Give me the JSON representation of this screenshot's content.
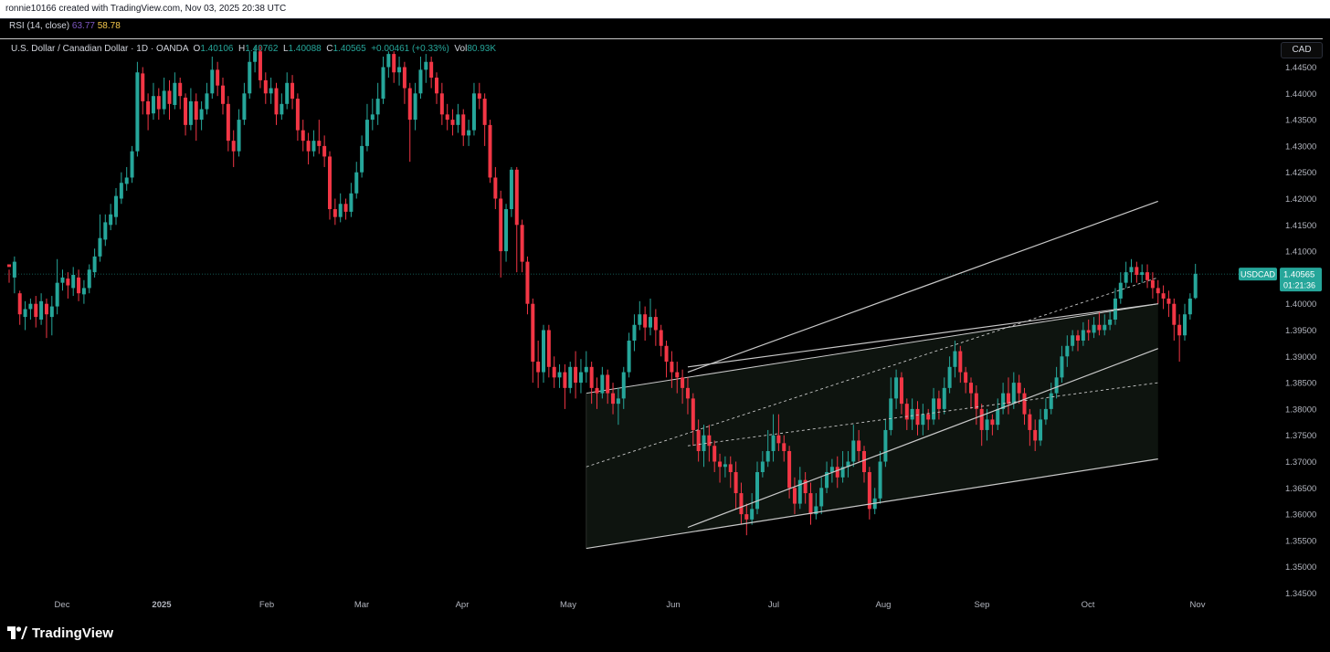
{
  "header": {
    "text": "ronnie10166 created with TradingView.com, Nov 03, 2025 20:38 UTC"
  },
  "rsi": {
    "label": "RSI (14, close)",
    "value1": "63.77",
    "value2": "58.78"
  },
  "legend": {
    "title": "U.S. Dollar / Canadian Dollar · 1D · OANDA",
    "o_label": "O",
    "o_value": "1.40106",
    "h_label": "H",
    "h_value": "1.40762",
    "l_label": "L",
    "l_value": "1.40088",
    "c_label": "C",
    "c_value": "1.40565",
    "change": "+0.00461 (+0.33%)",
    "vol_label": "Vol",
    "vol_value": "80.93K"
  },
  "currency": "CAD",
  "price_tag": {
    "symbol": "USDCAD",
    "price": "1.40565",
    "countdown": "01:21:36"
  },
  "colors": {
    "up": "#26a69a",
    "down": "#f23645",
    "background": "#000000",
    "lines": "#c8c8c8",
    "channel_fill": "#0e140f"
  },
  "logo": {
    "text": "TradingView",
    "icon": "tradingview-logo-icon"
  },
  "chart_data": {
    "type": "candlestick",
    "symbol": "USDCAD",
    "interval": "1D",
    "y_axis": {
      "min": 1.345,
      "max": 1.4475,
      "ticks": [
        "1.44500",
        "1.44000",
        "1.43500",
        "1.43000",
        "1.42500",
        "1.42000",
        "1.41500",
        "1.41000",
        "1.40500",
        "1.40000",
        "1.39500",
        "1.39000",
        "1.38500",
        "1.38000",
        "1.37500",
        "1.37000",
        "1.36500",
        "1.36000",
        "1.35500",
        "1.35000",
        "1.34500"
      ]
    },
    "x_axis": {
      "ticks": [
        "Dec",
        "2025",
        "Feb",
        "Mar",
        "Apr",
        "May",
        "Jun",
        "Jul",
        "Aug",
        "Sep",
        "Oct",
        "Nov"
      ]
    },
    "last_price": 1.40565,
    "candles": [
      [
        1.4075,
        1.407,
        1.4065,
        1.404
      ],
      [
        1.405,
        1.408,
        1.409,
        1.402
      ],
      [
        1.402,
        1.398,
        1.4025,
        1.396
      ],
      [
        1.3975,
        1.399,
        1.4005,
        1.395
      ],
      [
        1.399,
        1.4,
        1.401,
        1.397
      ],
      [
        1.4,
        1.3975,
        1.4015,
        1.3955
      ],
      [
        1.397,
        1.4005,
        1.402,
        1.396
      ],
      [
        1.4,
        1.398,
        1.401,
        1.3935
      ],
      [
        1.3975,
        1.3995,
        1.4015,
        1.394
      ],
      [
        1.3995,
        1.404,
        1.4085,
        1.398
      ],
      [
        1.404,
        1.405,
        1.4065,
        1.4025
      ],
      [
        1.4048,
        1.4035,
        1.406,
        1.401
      ],
      [
        1.403,
        1.4055,
        1.407,
        1.4015
      ],
      [
        1.405,
        1.402,
        1.4065,
        1.4005
      ],
      [
        1.4018,
        1.403,
        1.4045,
        1.4
      ],
      [
        1.403,
        1.4065,
        1.4075,
        1.402
      ],
      [
        1.406,
        1.409,
        1.4105,
        1.405
      ],
      [
        1.409,
        1.4125,
        1.417,
        1.408
      ],
      [
        1.4122,
        1.4155,
        1.417,
        1.411
      ],
      [
        1.415,
        1.417,
        1.419,
        1.414
      ],
      [
        1.4165,
        1.4205,
        1.422,
        1.415
      ],
      [
        1.42,
        1.423,
        1.425,
        1.419
      ],
      [
        1.4228,
        1.424,
        1.426,
        1.4215
      ],
      [
        1.424,
        1.429,
        1.43,
        1.423
      ],
      [
        1.429,
        1.444,
        1.446,
        1.428
      ],
      [
        1.4438,
        1.4385,
        1.445,
        1.436
      ],
      [
        1.4385,
        1.436,
        1.44,
        1.433
      ],
      [
        1.4362,
        1.4395,
        1.442,
        1.435
      ],
      [
        1.4395,
        1.437,
        1.441,
        1.435
      ],
      [
        1.437,
        1.4405,
        1.443,
        1.436
      ],
      [
        1.4405,
        1.438,
        1.4425,
        1.435
      ],
      [
        1.4378,
        1.442,
        1.444,
        1.437
      ],
      [
        1.442,
        1.4395,
        1.443,
        1.437
      ],
      [
        1.4392,
        1.434,
        1.44,
        1.432
      ],
      [
        1.434,
        1.4385,
        1.441,
        1.433
      ],
      [
        1.4385,
        1.435,
        1.44,
        1.431
      ],
      [
        1.435,
        1.437,
        1.4385,
        1.433
      ],
      [
        1.437,
        1.44,
        1.442,
        1.436
      ],
      [
        1.44,
        1.4445,
        1.447,
        1.439
      ],
      [
        1.4445,
        1.4415,
        1.446,
        1.4395
      ],
      [
        1.4415,
        1.438,
        1.443,
        1.436
      ],
      [
        1.438,
        1.431,
        1.4395,
        1.429
      ],
      [
        1.431,
        1.429,
        1.433,
        1.426
      ],
      [
        1.429,
        1.435,
        1.437,
        1.428
      ],
      [
        1.435,
        1.44,
        1.442,
        1.434
      ],
      [
        1.44,
        1.446,
        1.448,
        1.439
      ],
      [
        1.446,
        1.448,
        1.449,
        1.444
      ],
      [
        1.448,
        1.4425,
        1.449,
        1.441
      ],
      [
        1.4425,
        1.44,
        1.444,
        1.438
      ],
      [
        1.44,
        1.441,
        1.443,
        1.438
      ],
      [
        1.441,
        1.436,
        1.442,
        1.434
      ],
      [
        1.436,
        1.438,
        1.44,
        1.435
      ],
      [
        1.438,
        1.442,
        1.444,
        1.437
      ],
      [
        1.442,
        1.439,
        1.4435,
        1.437
      ],
      [
        1.439,
        1.433,
        1.44,
        1.431
      ],
      [
        1.433,
        1.431,
        1.435,
        1.429
      ],
      [
        1.431,
        1.429,
        1.4325,
        1.4265
      ],
      [
        1.429,
        1.431,
        1.433,
        1.428
      ],
      [
        1.431,
        1.43,
        1.435,
        1.4285
      ],
      [
        1.43,
        1.428,
        1.432,
        1.426
      ],
      [
        1.428,
        1.418,
        1.429,
        1.416
      ],
      [
        1.418,
        1.4165,
        1.42,
        1.415
      ],
      [
        1.4165,
        1.419,
        1.421,
        1.4155
      ],
      [
        1.419,
        1.4175,
        1.42,
        1.416
      ],
      [
        1.4175,
        1.421,
        1.423,
        1.4165
      ],
      [
        1.421,
        1.425,
        1.427,
        1.42
      ],
      [
        1.425,
        1.43,
        1.432,
        1.424
      ],
      [
        1.43,
        1.435,
        1.438,
        1.429
      ],
      [
        1.435,
        1.436,
        1.439,
        1.433
      ],
      [
        1.436,
        1.439,
        1.442,
        1.434
      ],
      [
        1.439,
        1.445,
        1.447,
        1.438
      ],
      [
        1.445,
        1.4475,
        1.448,
        1.443
      ],
      [
        1.4475,
        1.444,
        1.448,
        1.442
      ],
      [
        1.444,
        1.445,
        1.447,
        1.4415
      ],
      [
        1.445,
        1.441,
        1.446,
        1.438
      ],
      [
        1.441,
        1.435,
        1.442,
        1.427
      ],
      [
        1.435,
        1.44,
        1.442,
        1.433
      ],
      [
        1.44,
        1.4445,
        1.447,
        1.439
      ],
      [
        1.4445,
        1.446,
        1.4475,
        1.442
      ],
      [
        1.446,
        1.443,
        1.447,
        1.441
      ],
      [
        1.443,
        1.44,
        1.444,
        1.438
      ],
      [
        1.44,
        1.436,
        1.442,
        1.434
      ],
      [
        1.436,
        1.435,
        1.438,
        1.433
      ],
      [
        1.435,
        1.434,
        1.437,
        1.432
      ],
      [
        1.434,
        1.436,
        1.438,
        1.4325
      ],
      [
        1.436,
        1.432,
        1.437,
        1.43
      ],
      [
        1.432,
        1.433,
        1.435,
        1.43
      ],
      [
        1.433,
        1.44,
        1.442,
        1.432
      ],
      [
        1.44,
        1.439,
        1.442,
        1.437
      ],
      [
        1.439,
        1.434,
        1.44,
        1.43
      ],
      [
        1.434,
        1.424,
        1.435,
        1.423
      ],
      [
        1.424,
        1.42,
        1.426,
        1.418
      ],
      [
        1.42,
        1.41,
        1.4215,
        1.405
      ],
      [
        1.41,
        1.418,
        1.419,
        1.408
      ],
      [
        1.418,
        1.4255,
        1.426,
        1.4165
      ],
      [
        1.4255,
        1.415,
        1.426,
        1.406
      ],
      [
        1.415,
        1.408,
        1.416,
        1.406
      ],
      [
        1.408,
        1.4,
        1.409,
        1.398
      ],
      [
        1.4,
        1.389,
        1.401,
        1.385
      ],
      [
        1.389,
        1.387,
        1.393,
        1.384
      ],
      [
        1.387,
        1.395,
        1.396,
        1.385
      ],
      [
        1.395,
        1.388,
        1.396,
        1.386
      ],
      [
        1.388,
        1.386,
        1.39,
        1.384
      ],
      [
        1.386,
        1.387,
        1.3885,
        1.384
      ],
      [
        1.387,
        1.384,
        1.3885,
        1.38
      ],
      [
        1.384,
        1.388,
        1.389,
        1.383
      ],
      [
        1.388,
        1.385,
        1.391,
        1.382
      ],
      [
        1.385,
        1.387,
        1.3895,
        1.383
      ],
      [
        1.387,
        1.388,
        1.391,
        1.385
      ],
      [
        1.388,
        1.384,
        1.389,
        1.381
      ],
      [
        1.384,
        1.383,
        1.386,
        1.38
      ],
      [
        1.383,
        1.3865,
        1.388,
        1.382
      ],
      [
        1.3865,
        1.383,
        1.3875,
        1.381
      ],
      [
        1.383,
        1.381,
        1.385,
        1.379
      ],
      [
        1.381,
        1.382,
        1.384,
        1.377
      ],
      [
        1.382,
        1.387,
        1.388,
        1.38
      ],
      [
        1.387,
        1.393,
        1.3945,
        1.386
      ],
      [
        1.393,
        1.396,
        1.398,
        1.391
      ],
      [
        1.396,
        1.398,
        1.4005,
        1.395
      ],
      [
        1.398,
        1.3955,
        1.3995,
        1.393
      ],
      [
        1.3955,
        1.3975,
        1.401,
        1.394
      ],
      [
        1.3975,
        1.395,
        1.399,
        1.392
      ],
      [
        1.395,
        1.392,
        1.396,
        1.39
      ],
      [
        1.392,
        1.389,
        1.393,
        1.386
      ],
      [
        1.389,
        1.387,
        1.391,
        1.384
      ],
      [
        1.387,
        1.386,
        1.389,
        1.383
      ],
      [
        1.386,
        1.384,
        1.3875,
        1.381
      ],
      [
        1.384,
        1.382,
        1.386,
        1.379
      ],
      [
        1.382,
        1.376,
        1.383,
        1.373
      ],
      [
        1.376,
        1.372,
        1.378,
        1.37
      ],
      [
        1.372,
        1.375,
        1.377,
        1.369
      ],
      [
        1.375,
        1.373,
        1.377,
        1.37
      ],
      [
        1.373,
        1.37,
        1.374,
        1.368
      ],
      [
        1.37,
        1.369,
        1.3715,
        1.366
      ],
      [
        1.369,
        1.3695,
        1.371,
        1.367
      ],
      [
        1.3695,
        1.368,
        1.371,
        1.365
      ],
      [
        1.368,
        1.364,
        1.37,
        1.361
      ],
      [
        1.364,
        1.36,
        1.366,
        1.358
      ],
      [
        1.36,
        1.359,
        1.362,
        1.356
      ],
      [
        1.359,
        1.361,
        1.364,
        1.358
      ],
      [
        1.361,
        1.368,
        1.37,
        1.36
      ],
      [
        1.368,
        1.37,
        1.372,
        1.367
      ],
      [
        1.37,
        1.372,
        1.376,
        1.369
      ],
      [
        1.372,
        1.375,
        1.379,
        1.37
      ],
      [
        1.375,
        1.3735,
        1.379,
        1.372
      ],
      [
        1.3735,
        1.372,
        1.375,
        1.37
      ],
      [
        1.372,
        1.365,
        1.373,
        1.363
      ],
      [
        1.365,
        1.362,
        1.367,
        1.36
      ],
      [
        1.362,
        1.3665,
        1.369,
        1.361
      ],
      [
        1.3665,
        1.364,
        1.368,
        1.362
      ],
      [
        1.364,
        1.36,
        1.366,
        1.358
      ],
      [
        1.36,
        1.3615,
        1.364,
        1.359
      ],
      [
        1.3615,
        1.365,
        1.367,
        1.36
      ],
      [
        1.365,
        1.368,
        1.37,
        1.364
      ],
      [
        1.368,
        1.369,
        1.3705,
        1.366
      ],
      [
        1.369,
        1.367,
        1.371,
        1.365
      ],
      [
        1.367,
        1.369,
        1.372,
        1.366
      ],
      [
        1.369,
        1.37,
        1.372,
        1.367
      ],
      [
        1.37,
        1.374,
        1.377,
        1.369
      ],
      [
        1.374,
        1.372,
        1.376,
        1.37
      ],
      [
        1.372,
        1.368,
        1.373,
        1.366
      ],
      [
        1.368,
        1.361,
        1.369,
        1.359
      ],
      [
        1.361,
        1.363,
        1.365,
        1.36
      ],
      [
        1.363,
        1.37,
        1.372,
        1.362
      ],
      [
        1.37,
        1.376,
        1.378,
        1.369
      ],
      [
        1.376,
        1.382,
        1.386,
        1.375
      ],
      [
        1.382,
        1.386,
        1.3875,
        1.38
      ],
      [
        1.386,
        1.381,
        1.387,
        1.379
      ],
      [
        1.381,
        1.378,
        1.382,
        1.376
      ],
      [
        1.378,
        1.38,
        1.382,
        1.376
      ],
      [
        1.38,
        1.377,
        1.3815,
        1.375
      ],
      [
        1.377,
        1.379,
        1.381,
        1.375
      ],
      [
        1.379,
        1.378,
        1.38,
        1.376
      ],
      [
        1.378,
        1.382,
        1.384,
        1.377
      ],
      [
        1.382,
        1.38,
        1.3835,
        1.378
      ],
      [
        1.38,
        1.384,
        1.386,
        1.379
      ],
      [
        1.384,
        1.388,
        1.39,
        1.383
      ],
      [
        1.388,
        1.391,
        1.393,
        1.386
      ],
      [
        1.391,
        1.387,
        1.392,
        1.385
      ],
      [
        1.387,
        1.385,
        1.388,
        1.383
      ],
      [
        1.385,
        1.383,
        1.386,
        1.38
      ],
      [
        1.383,
        1.38,
        1.3845,
        1.377
      ],
      [
        1.38,
        1.376,
        1.381,
        1.373
      ],
      [
        1.376,
        1.378,
        1.38,
        1.374
      ],
      [
        1.378,
        1.377,
        1.379,
        1.375
      ],
      [
        1.377,
        1.38,
        1.382,
        1.376
      ],
      [
        1.38,
        1.383,
        1.385,
        1.379
      ],
      [
        1.383,
        1.381,
        1.386,
        1.379
      ],
      [
        1.381,
        1.385,
        1.387,
        1.38
      ],
      [
        1.385,
        1.383,
        1.3865,
        1.381
      ],
      [
        1.383,
        1.379,
        1.384,
        1.377
      ],
      [
        1.379,
        1.376,
        1.38,
        1.373
      ],
      [
        1.376,
        1.374,
        1.378,
        1.372
      ],
      [
        1.374,
        1.378,
        1.38,
        1.373
      ],
      [
        1.378,
        1.38,
        1.382,
        1.377
      ],
      [
        1.38,
        1.383,
        1.385,
        1.379
      ],
      [
        1.383,
        1.386,
        1.388,
        1.382
      ],
      [
        1.386,
        1.39,
        1.392,
        1.385
      ],
      [
        1.39,
        1.392,
        1.394,
        1.388
      ],
      [
        1.392,
        1.394,
        1.395,
        1.391
      ],
      [
        1.394,
        1.393,
        1.395,
        1.391
      ],
      [
        1.393,
        1.395,
        1.3965,
        1.392
      ],
      [
        1.395,
        1.3945,
        1.397,
        1.393
      ],
      [
        1.3945,
        1.396,
        1.3975,
        1.3935
      ],
      [
        1.396,
        1.395,
        1.3985,
        1.394
      ],
      [
        1.395,
        1.396,
        1.398,
        1.394
      ],
      [
        1.396,
        1.397,
        1.3985,
        1.395
      ],
      [
        1.397,
        1.401,
        1.403,
        1.396
      ],
      [
        1.401,
        1.404,
        1.406,
        1.4
      ],
      [
        1.404,
        1.406,
        1.408,
        1.403
      ],
      [
        1.406,
        1.407,
        1.4085,
        1.404
      ],
      [
        1.407,
        1.4055,
        1.408,
        1.404
      ],
      [
        1.4055,
        1.406,
        1.4075,
        1.404
      ],
      [
        1.406,
        1.4045,
        1.4075,
        1.403
      ],
      [
        1.4045,
        1.403,
        1.406,
        1.401
      ],
      [
        1.403,
        1.402,
        1.4045,
        1.4
      ],
      [
        1.402,
        1.401,
        1.4035,
        1.399
      ],
      [
        1.401,
        1.4,
        1.4025,
        1.3975
      ],
      [
        1.4,
        1.396,
        1.401,
        1.393
      ],
      [
        1.396,
        1.394,
        1.398,
        1.389
      ],
      [
        1.394,
        1.398,
        1.4,
        1.393
      ],
      [
        1.398,
        1.401,
        1.402,
        1.397
      ],
      [
        1.4011,
        1.4057,
        1.4076,
        1.4009
      ]
    ],
    "lines": [
      {
        "name": "upper-channel-line",
        "from": [
          127,
          1.387
        ],
        "to": [
          215,
          1.4195
        ],
        "style": "solid"
      },
      {
        "name": "middle-channel-line",
        "from": [
          127,
          1.388
        ],
        "to": [
          215,
          1.4
        ],
        "style": "solid"
      },
      {
        "name": "lower-channel-line",
        "from": [
          108,
          1.3535
        ],
        "to": [
          215,
          1.3705
        ],
        "style": "solid"
      },
      {
        "name": "rising-support-line",
        "from": [
          127,
          1.3575
        ],
        "to": [
          215,
          1.3915
        ],
        "style": "solid"
      },
      {
        "name": "dashed-trend-a",
        "from": [
          108,
          1.369
        ],
        "to": [
          215,
          1.405
        ],
        "style": "dashed"
      },
      {
        "name": "dashed-trend-b",
        "from": [
          127,
          1.373
        ],
        "to": [
          215,
          1.385
        ],
        "style": "dashed"
      }
    ],
    "channel_region": {
      "from_x": 108,
      "to_x": 215
    }
  }
}
